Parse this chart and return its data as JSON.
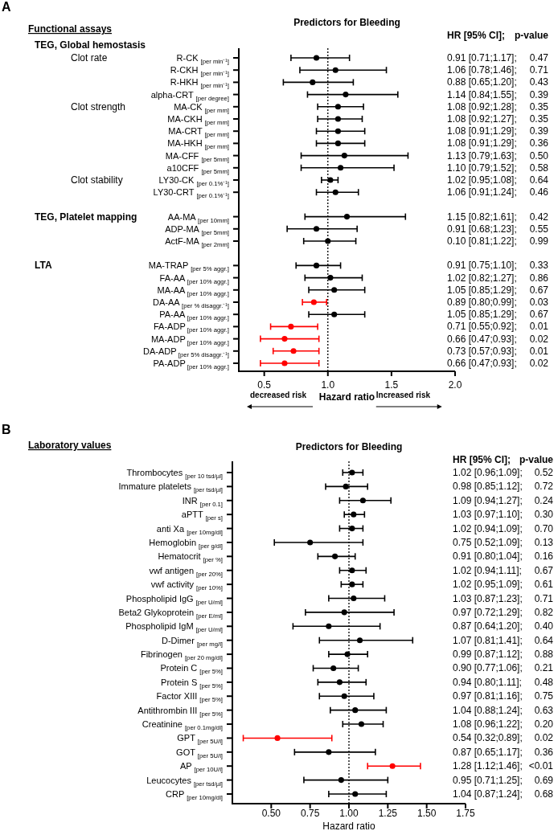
{
  "chart_data": [
    {
      "type": "scatter",
      "orientation": "horizontal",
      "marker": "circle",
      "title": "Predictors for Bleeding",
      "subtitle": "Functional assays",
      "xlabel": "Hazard ratio",
      "annotations": [
        "A",
        "HR [95% CI];",
        "p-value",
        "TEG, Global hemostasis",
        "decreased risk",
        "Increased risk",
        "Clot rate",
        "Clot strength",
        "Clot stability",
        "TEG, Platelet mapping",
        "LTA"
      ],
      "categories": [
        "R-CK $_{[per min⁻¹]}$",
        "R-CKH $_{[per min⁻¹]}$",
        "R-HKH $_{[per min⁻¹]}$",
        "alpha-CRT $_{[per degree]}$",
        "MA-CK $_{[per mm]}$",
        "MA-CKH $_{[per mm]}$",
        "MA-CRT $_{[per mm]}$",
        "MA-HKH $_{[per mm]}$",
        "MA-CFF $_{[per 5mm]}$",
        "a10CFF $_{[per 5mm]}$",
        "LY30-CK $_{[per 0.1%⁻¹]}$",
        "LY30-CRT $_{[per 0.1%⁻¹]}$",
        null,
        "AA-MA $_{[per 10mm]}$",
        "ADP-MA $_{[per 5mm]}$",
        "ActF-MA $_{[per 2mm]}$",
        null,
        "MA-TRAP $_{[per 5% aggr.]}$",
        "FA-AA $_{[per 10% aggr.]}$",
        "MA-AA $_{[per 10% aggr.]}$",
        "DA-AA $_{[per % disaggr.⁻¹]}$",
        "PA-AA $_{[per 10% aggr.]}$",
        "FA-ADP$_{[per 10% aggr.]}$",
        "MA-ADP$_{[per 10% aggr.]}$",
        "DA-ADP$_{[per 5% disaggr.⁻¹]}$",
        "PA-ADP$_{[per 10% aggr.]}$"
      ],
      "values": [
        0.91,
        1.06,
        0.88,
        1.14,
        1.08,
        1.08,
        1.08,
        1.08,
        1.13,
        1.1,
        1.02,
        1.06,
        null,
        1.15,
        0.91,
        1.0,
        null,
        0.91,
        1.02,
        1.05,
        0.89,
        1.05,
        0.71,
        0.66,
        0.73,
        0.66
      ],
      "errors": [
        [
          0.71,
          1.17
        ],
        [
          0.78,
          1.46
        ],
        [
          0.65,
          1.2
        ],
        [
          0.84,
          1.55
        ],
        [
          0.92,
          1.28
        ],
        [
          0.92,
          1.27
        ],
        [
          0.91,
          1.29
        ],
        [
          0.91,
          1.29
        ],
        [
          0.79,
          1.63
        ],
        [
          0.79,
          1.52
        ],
        [
          0.95,
          1.08
        ],
        [
          0.91,
          1.24
        ],
        null,
        [
          0.82,
          1.61
        ],
        [
          0.68,
          1.23
        ],
        [
          0.81,
          1.22
        ],
        null,
        [
          0.75,
          1.1
        ],
        [
          0.82,
          1.27
        ],
        [
          0.85,
          1.29
        ],
        [
          0.8,
          0.99
        ],
        [
          0.85,
          1.29
        ],
        [
          0.55,
          0.92
        ],
        [
          0.47,
          0.93
        ],
        [
          0.57,
          0.93
        ],
        [
          0.47,
          0.93
        ]
      ],
      "colors": [
        "#000000",
        "#000000",
        "#000000",
        "#000000",
        "#000000",
        "#000000",
        "#000000",
        "#000000",
        "#000000",
        "#000000",
        "#000000",
        "#000000",
        null,
        "#000000",
        "#000000",
        "#000000",
        null,
        "#000000",
        "#000000",
        "#000000",
        "#ff0000",
        "#000000",
        "#ff0000",
        "#ff0000",
        "#ff0000",
        "#ff0000"
      ],
      "value_labels": [
        "0.91 [0.71;1.17];",
        "1.06 [0.78;1.46];",
        "0.88 [0.65;1.20];",
        "1.14 [0.84;1.55];",
        "1.08 [0.92;1.28];",
        "1.08 [0.92;1.27];",
        "1.08 [0.91;1.29];",
        "1.08 [0.91;1.29];",
        "1.13 [0.79;1.63];",
        "1.10 [0.79;1.52];",
        "1.02 [0.95;1.08];",
        "1.06 [0.91;1.24];",
        null,
        "1.15 [0.82;1.61];",
        "0.91 [0.68;1.23];",
        "0.10 [0.81;1.22];",
        null,
        "0.91 [0.75;1.10];",
        "1.02 [0.82;1.27];",
        "1.05 [0.85;1.29];",
        "0.89 [0.80;0.99];",
        "1.05 [0.85;1.29];",
        "0.71 [0.55;0.92];",
        "0.66 [0.47;0.93];",
        "0.73 [0.57;0.93];",
        "0.66 [0.47;0.93];"
      ],
      "y2_categories": [
        "0.47",
        "0.71",
        "0.43",
        "0.39",
        "0.35",
        "0.35",
        "0.39",
        "0.36",
        "0.50",
        "0.58",
        "0.64",
        "0.46",
        null,
        "0.42",
        "0.55",
        "0.99",
        null,
        "0.33",
        "0.86",
        "0.67",
        "0.03",
        "0.67",
        "0.01",
        "0.02",
        "0.01",
        "0.02"
      ],
      "xlim": [
        0.3,
        2.0
      ],
      "xticks": [
        {
          "value": 0.5,
          "label": "0.5"
        },
        {
          "value": 1.0,
          "label": "1.0"
        },
        {
          "value": 1.5,
          "label": "1.5"
        },
        {
          "value": 2.0,
          "label": "2.0"
        }
      ],
      "ref_lines": [
        {
          "axis": "x",
          "value": 1.0,
          "line_style": "dotted",
          "color": "#000000"
        }
      ]
    },
    {
      "type": "scatter",
      "orientation": "horizontal",
      "marker": "circle",
      "title": "Predictors for Bleeding",
      "subtitle": "Laboratory values",
      "xlabel": "Hazard ratio",
      "annotations": [
        "B",
        "HR [95% CI];",
        "p-value"
      ],
      "categories": [
        "Thrombocytes $_{[per 10 tsd/µl]}$",
        "Immature platelets $_{[per tsd/µl]}$",
        "INR $_{[per 0.1]}$",
        "aPTT $_{[per s]}$",
        "anti Xa $_{[per 10mg/dl]}$",
        "Hemoglobin $_{[per g/dl]}$",
        "Hematocrit $_{[per %]}$",
        "vwf antigen $_{[per 20%]}$",
        "vwf activity $_{[per 10%]}$",
        "Phospholipid IgG $_{[per U/ml]}$",
        "Beta2 Glykoprotein $_{[per E/ml]}$",
        "Phospholipid IgM $_{[per U/ml]}$",
        "D-Dimer $_{[per mg/l]}$",
        "Fibrinogen $_{[per 20 mg/dl]}$",
        "Protein C $_{[per 5%]}$",
        "Protein S $_{[per 5%]}$",
        "Factor XIII $_{[per 5%]}$",
        "Antithrombin III $_{[per 5%]}$",
        "Creatinine $_{[per 0.1mg/dl]}$",
        "GPT $_{[per 5U/l]}$",
        "GOT $_{[per 5U/l]}$",
        "AP $_{[per 10U/l]}$",
        "Leucocytes $_{[per tsd/µl]}$",
        "CRP $_{[per 10mg/dl]}$"
      ],
      "values": [
        1.02,
        0.98,
        1.09,
        1.03,
        1.02,
        0.75,
        0.91,
        1.02,
        1.02,
        1.03,
        0.97,
        0.87,
        1.07,
        0.99,
        0.9,
        0.94,
        0.97,
        1.04,
        1.08,
        0.54,
        0.87,
        1.28,
        0.95,
        1.04
      ],
      "errors": [
        [
          0.96,
          1.09
        ],
        [
          0.85,
          1.12
        ],
        [
          0.94,
          1.27
        ],
        [
          0.97,
          1.1
        ],
        [
          0.94,
          1.09
        ],
        [
          0.52,
          1.09
        ],
        [
          0.8,
          1.04
        ],
        [
          0.94,
          1.11
        ],
        [
          0.95,
          1.09
        ],
        [
          0.87,
          1.23
        ],
        [
          0.72,
          1.29
        ],
        [
          0.64,
          1.2
        ],
        [
          0.81,
          1.41
        ],
        [
          0.87,
          1.12
        ],
        [
          0.77,
          1.06
        ],
        [
          0.8,
          1.11
        ],
        [
          0.81,
          1.16
        ],
        [
          0.88,
          1.24
        ],
        [
          0.96,
          1.22
        ],
        [
          0.32,
          0.89
        ],
        [
          0.65,
          1.17
        ],
        [
          1.12,
          1.46
        ],
        [
          0.71,
          1.25
        ],
        [
          0.87,
          1.24
        ]
      ],
      "colors": [
        "#000000",
        "#000000",
        "#000000",
        "#000000",
        "#000000",
        "#000000",
        "#000000",
        "#000000",
        "#000000",
        "#000000",
        "#000000",
        "#000000",
        "#000000",
        "#000000",
        "#000000",
        "#000000",
        "#000000",
        "#000000",
        "#000000",
        "#ff0000",
        "#000000",
        "#ff0000",
        "#000000",
        "#000000"
      ],
      "value_labels": [
        "1.02 [0.96;1.09];",
        "0.98 [0.85;1.12];",
        "1.09 [0.94;1.27];",
        "1.03 [0.97;1.10];",
        "1.02 [0.94;1.09];",
        "0.75 [0.52;1.09];",
        "0.91 [0.80;1.04];",
        "1.02 [0.94;1.11];",
        "1.02 [0.95;1.09];",
        "1.03 [0.87;1.23];",
        "0.97 [0.72;1.29];",
        "0.87 [0.64;1.20];",
        "1.07 [0.81;1.41];",
        "0.99 [0.87;1.12];",
        "0.90 [0.77;1.06];",
        "0.94 [0.80;1.11];",
        "0.97 [0.81;1.16];",
        "1.04 [0.88;1.24];",
        "1.08 [0.96;1.22];",
        "0.54 [0.32;0.89];",
        "0.87 [0.65;1.17];",
        "1.28 [1.12;1.46];",
        "0.95 [0.71;1.25];",
        "1.04 [0.87;1.24];"
      ],
      "y2_categories": [
        "0.52",
        "0.72",
        "0.24",
        "0.30",
        "0.70",
        "0.13",
        "0.16",
        "0.67",
        "0.61",
        "0.71",
        "0.82",
        "0.40",
        "0.64",
        "0.88",
        "0.21",
        "0.48",
        "0.75",
        "0.63",
        "0.20",
        "0.02",
        "0.36",
        "<0.01",
        "0.69",
        "0.68"
      ],
      "xlim": [
        0.25,
        1.75
      ],
      "xticks": [
        {
          "value": 0.5,
          "label": "0.50"
        },
        {
          "value": 0.75,
          "label": "0.75"
        },
        {
          "value": 1.0,
          "label": "1.00"
        },
        {
          "value": 1.25,
          "label": "1.25"
        },
        {
          "value": 1.5,
          "label": "1.50"
        },
        {
          "value": 1.75,
          "label": "1.75"
        }
      ],
      "ref_lines": [
        {
          "axis": "x",
          "value": 1.0,
          "line_style": "dotted",
          "color": "#000000"
        }
      ]
    }
  ]
}
